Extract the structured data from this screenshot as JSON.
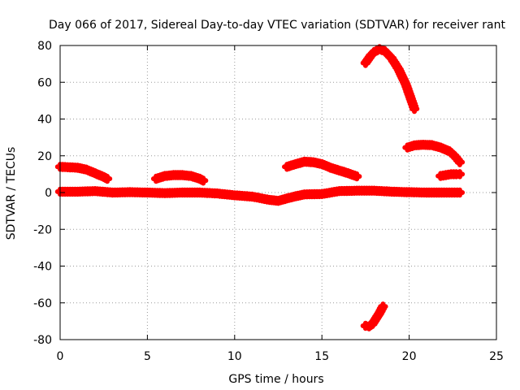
{
  "chart_data": {
    "type": "scatter",
    "title": "Day 066 of 2017, Sidereal Day-to-day VTEC variation (SDTVAR) for receiver rant",
    "xlabel": "GPS time / hours",
    "ylabel": "SDTVAR / TECUs",
    "xlim": [
      0,
      25
    ],
    "ylim": [
      -80,
      80
    ],
    "xticks": [
      "0",
      "5",
      "10",
      "15",
      "20",
      "25"
    ],
    "yticks": [
      "-80",
      "-60",
      "-40",
      "-20",
      "0",
      "20",
      "40",
      "60",
      "80"
    ],
    "grid": true,
    "color": "#ff0000",
    "series": [
      {
        "x": [
          0.0,
          1.0,
          1.5,
          2.0,
          2.5,
          2.7
        ],
        "y": [
          14.0,
          13.5,
          12.5,
          10.5,
          8.5,
          7.5
        ]
      },
      {
        "x": [
          5.5,
          6.0,
          6.5,
          7.0,
          7.5,
          8.0,
          8.2
        ],
        "y": [
          7.5,
          9.0,
          9.5,
          9.5,
          9.0,
          7.5,
          6.5
        ]
      },
      {
        "x": [
          13.0,
          13.5,
          14.0,
          14.5,
          15.0,
          15.5,
          16.0,
          16.5,
          17.0
        ],
        "y": [
          14.0,
          15.5,
          16.8,
          16.5,
          15.5,
          13.5,
          12.0,
          10.5,
          8.8
        ]
      },
      {
        "x": [
          17.5,
          17.8,
          18.0,
          18.3,
          18.6,
          19.0,
          19.4,
          19.8,
          20.1,
          20.3
        ],
        "y": [
          70.5,
          74.5,
          76.5,
          78.0,
          77.0,
          73.0,
          67.0,
          59.0,
          51.0,
          45.5
        ]
      },
      {
        "x": [
          17.5,
          17.7,
          17.9,
          18.1,
          18.3,
          18.5
        ],
        "y": [
          -72.5,
          -72.8,
          -71.5,
          -68.5,
          -65.5,
          -62.0
        ]
      },
      {
        "x": [
          19.9,
          20.3,
          20.8,
          21.3,
          21.8,
          22.3,
          22.6,
          22.9
        ],
        "y": [
          24.5,
          25.7,
          26.0,
          25.8,
          24.5,
          22.5,
          20.0,
          16.5
        ]
      },
      {
        "x": [
          21.8,
          22.1,
          22.4,
          22.7,
          22.9
        ],
        "y": [
          9.0,
          9.5,
          10.0,
          10.0,
          10.0
        ]
      },
      {
        "x": [
          0.0,
          1.0,
          2.0,
          3.0,
          4.0,
          5.0,
          6.0,
          7.0,
          8.0,
          9.0,
          10.0,
          11.0,
          12.0,
          12.5,
          13.0,
          13.5,
          14.0,
          15.0,
          16.0,
          17.0,
          18.0,
          19.0,
          20.0,
          21.0,
          22.0,
          22.9
        ],
        "y": [
          0.5,
          0.5,
          0.8,
          0.0,
          0.2,
          0.0,
          -0.3,
          0.0,
          0.0,
          -0.5,
          -1.5,
          -2.2,
          -4.0,
          -4.5,
          -3.2,
          -2.0,
          -1.0,
          -0.8,
          0.8,
          1.0,
          1.0,
          0.5,
          0.2,
          0.0,
          0.0,
          0.0
        ]
      }
    ]
  }
}
